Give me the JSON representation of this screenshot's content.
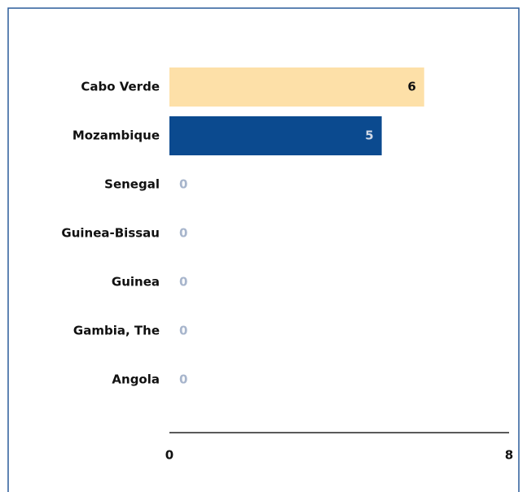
{
  "chart_data": {
    "type": "hbar",
    "categories": [
      "Cabo Verde",
      "Mozambique",
      "Senegal",
      "Guinea-Bissau",
      "Guinea",
      "Gambia, The",
      "Angola"
    ],
    "values": [
      6,
      5,
      0,
      0,
      0,
      0,
      0
    ],
    "colors": [
      "#fde0a8",
      "#0b4a8f",
      "#0b4a8f",
      "#0b4a8f",
      "#0b4a8f",
      "#0b4a8f",
      "#0b4a8f"
    ],
    "xlim": [
      0,
      8
    ],
    "xticks": [
      0,
      8
    ]
  }
}
